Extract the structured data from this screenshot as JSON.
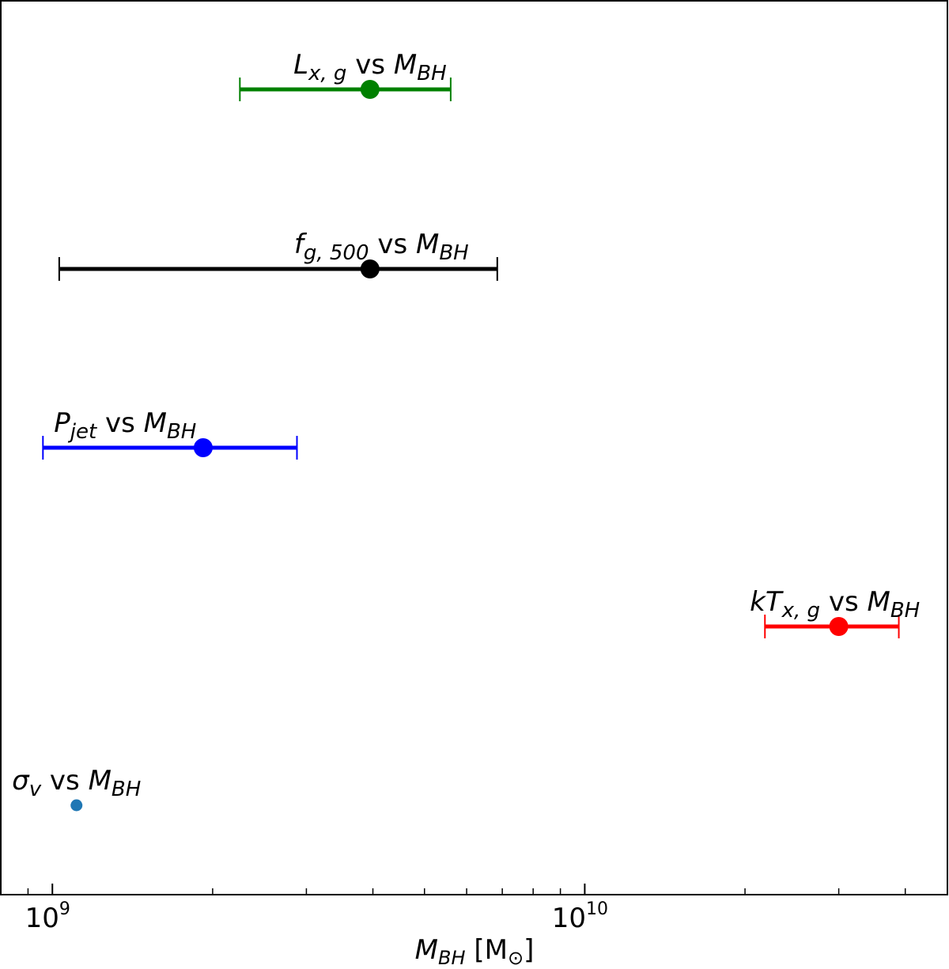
{
  "chart_data": {
    "type": "scatter",
    "x_scale": "log",
    "xlim": [
      800000000,
      48000000000
    ],
    "xlabel": "M_BH [M_⊙]",
    "xlabel_parts": {
      "main": "M",
      "sub": "BH",
      "rest": " [M",
      "sun": "⊙",
      "close": "]"
    },
    "xticks": [
      {
        "value": 1000000000,
        "base": "10",
        "exp": "9"
      },
      {
        "value": 10000000000,
        "base": "10",
        "exp": "10"
      }
    ],
    "grid": false,
    "points": [
      {
        "id": "lxg",
        "x": 3950000000,
        "xerr_low": 2250000000,
        "xerr_high": 5600000000,
        "color": "#008000",
        "marker_radius": "large",
        "errorbar": true,
        "label_x": 3950000000,
        "label": [
          {
            "t": "L",
            "c": "it"
          },
          {
            "t": "x, g",
            "c": "sub"
          },
          {
            "t": " vs ",
            "c": ""
          },
          {
            "t": "M",
            "c": "it"
          },
          {
            "t": "BH",
            "c": "sub"
          }
        ]
      },
      {
        "id": "fg500",
        "x": 3950000000,
        "xerr_low": 1030000000,
        "xerr_high": 6850000000,
        "color": "#000000",
        "marker_radius": "large",
        "errorbar": true,
        "label_x": 4150000000,
        "label": [
          {
            "t": "f",
            "c": "it"
          },
          {
            "t": "g, 500",
            "c": "sub"
          },
          {
            "t": " vs ",
            "c": ""
          },
          {
            "t": "M",
            "c": "it"
          },
          {
            "t": "BH",
            "c": "sub"
          }
        ]
      },
      {
        "id": "pjet",
        "x": 1920000000,
        "xerr_low": 960000000,
        "xerr_high": 2880000000,
        "color": "#0000ff",
        "marker_radius": "large",
        "errorbar": true,
        "label_x": 1370000000,
        "label": [
          {
            "t": "P",
            "c": "it"
          },
          {
            "t": "jet",
            "c": "sub"
          },
          {
            "t": " vs ",
            "c": ""
          },
          {
            "t": "M",
            "c": "it"
          },
          {
            "t": "BH",
            "c": "sub"
          }
        ]
      },
      {
        "id": "ktxg",
        "x": 30000000000,
        "xerr_low": 21800000000,
        "xerr_high": 38900000000,
        "color": "#ff0000",
        "marker_radius": "large",
        "errorbar": true,
        "label_x": 29500000000,
        "label": [
          {
            "t": "kT",
            "c": "it"
          },
          {
            "t": "x, g",
            "c": "sub"
          },
          {
            "t": " vs ",
            "c": ""
          },
          {
            "t": "M",
            "c": "it"
          },
          {
            "t": "BH",
            "c": "sub"
          }
        ]
      },
      {
        "id": "sigmav",
        "x": 1110000000,
        "color": "#1f77b4",
        "marker_radius": "small",
        "errorbar": false,
        "label_x": 1110000000,
        "label": [
          {
            "t": "σ",
            "c": "it"
          },
          {
            "t": "v",
            "c": "sub"
          },
          {
            "t": " vs ",
            "c": ""
          },
          {
            "t": "M",
            "c": "it"
          },
          {
            "t": "BH",
            "c": "sub"
          }
        ]
      }
    ]
  }
}
